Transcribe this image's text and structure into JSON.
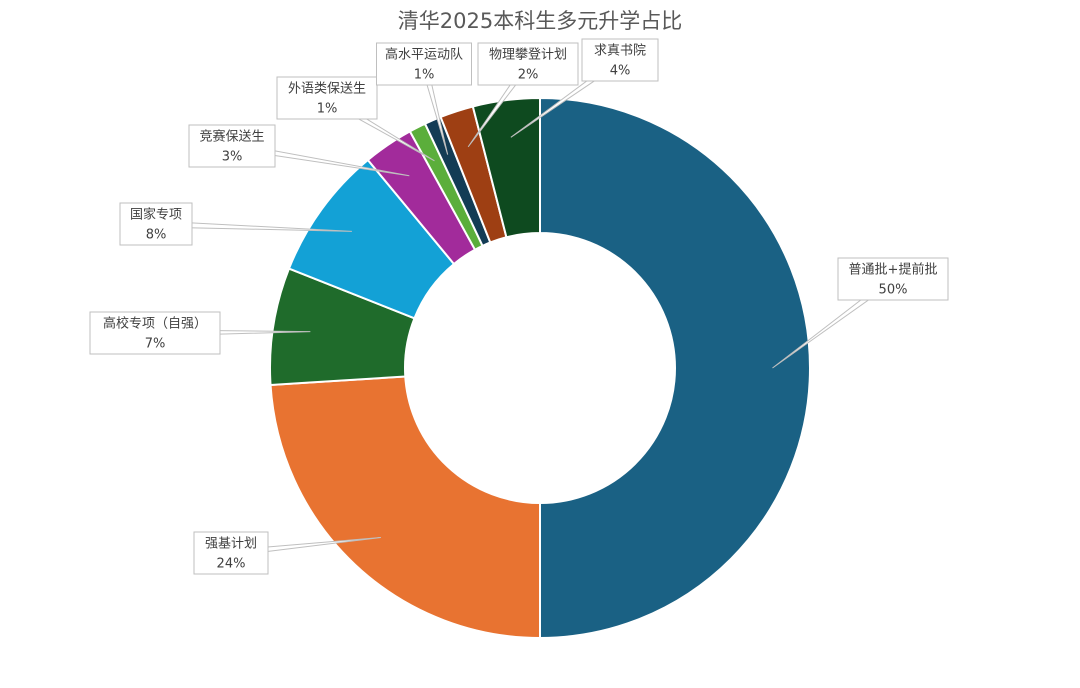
{
  "chart_data": {
    "type": "donut",
    "title": "清华2025本科生多元升学占比",
    "categories": [
      "普通批+提前批",
      "强基计划",
      "高校专项（自强）",
      "国家专项",
      "竞赛保送生",
      "外语类保送生",
      "高水平运动队",
      "物理攀登计划",
      "求真书院"
    ],
    "values": [
      50,
      24,
      7,
      8,
      3,
      1,
      1,
      2,
      4
    ],
    "value_labels": [
      "50%",
      "24%",
      "7%",
      "8%",
      "3%",
      "1%",
      "1%",
      "2%",
      "4%"
    ],
    "colors": [
      "#1a6184",
      "#e87331",
      "#1f6b2b",
      "#13a1d6",
      "#a22b9b",
      "#5bae3b",
      "#133c55",
      "#9e3f13",
      "#0e4a1f"
    ]
  }
}
